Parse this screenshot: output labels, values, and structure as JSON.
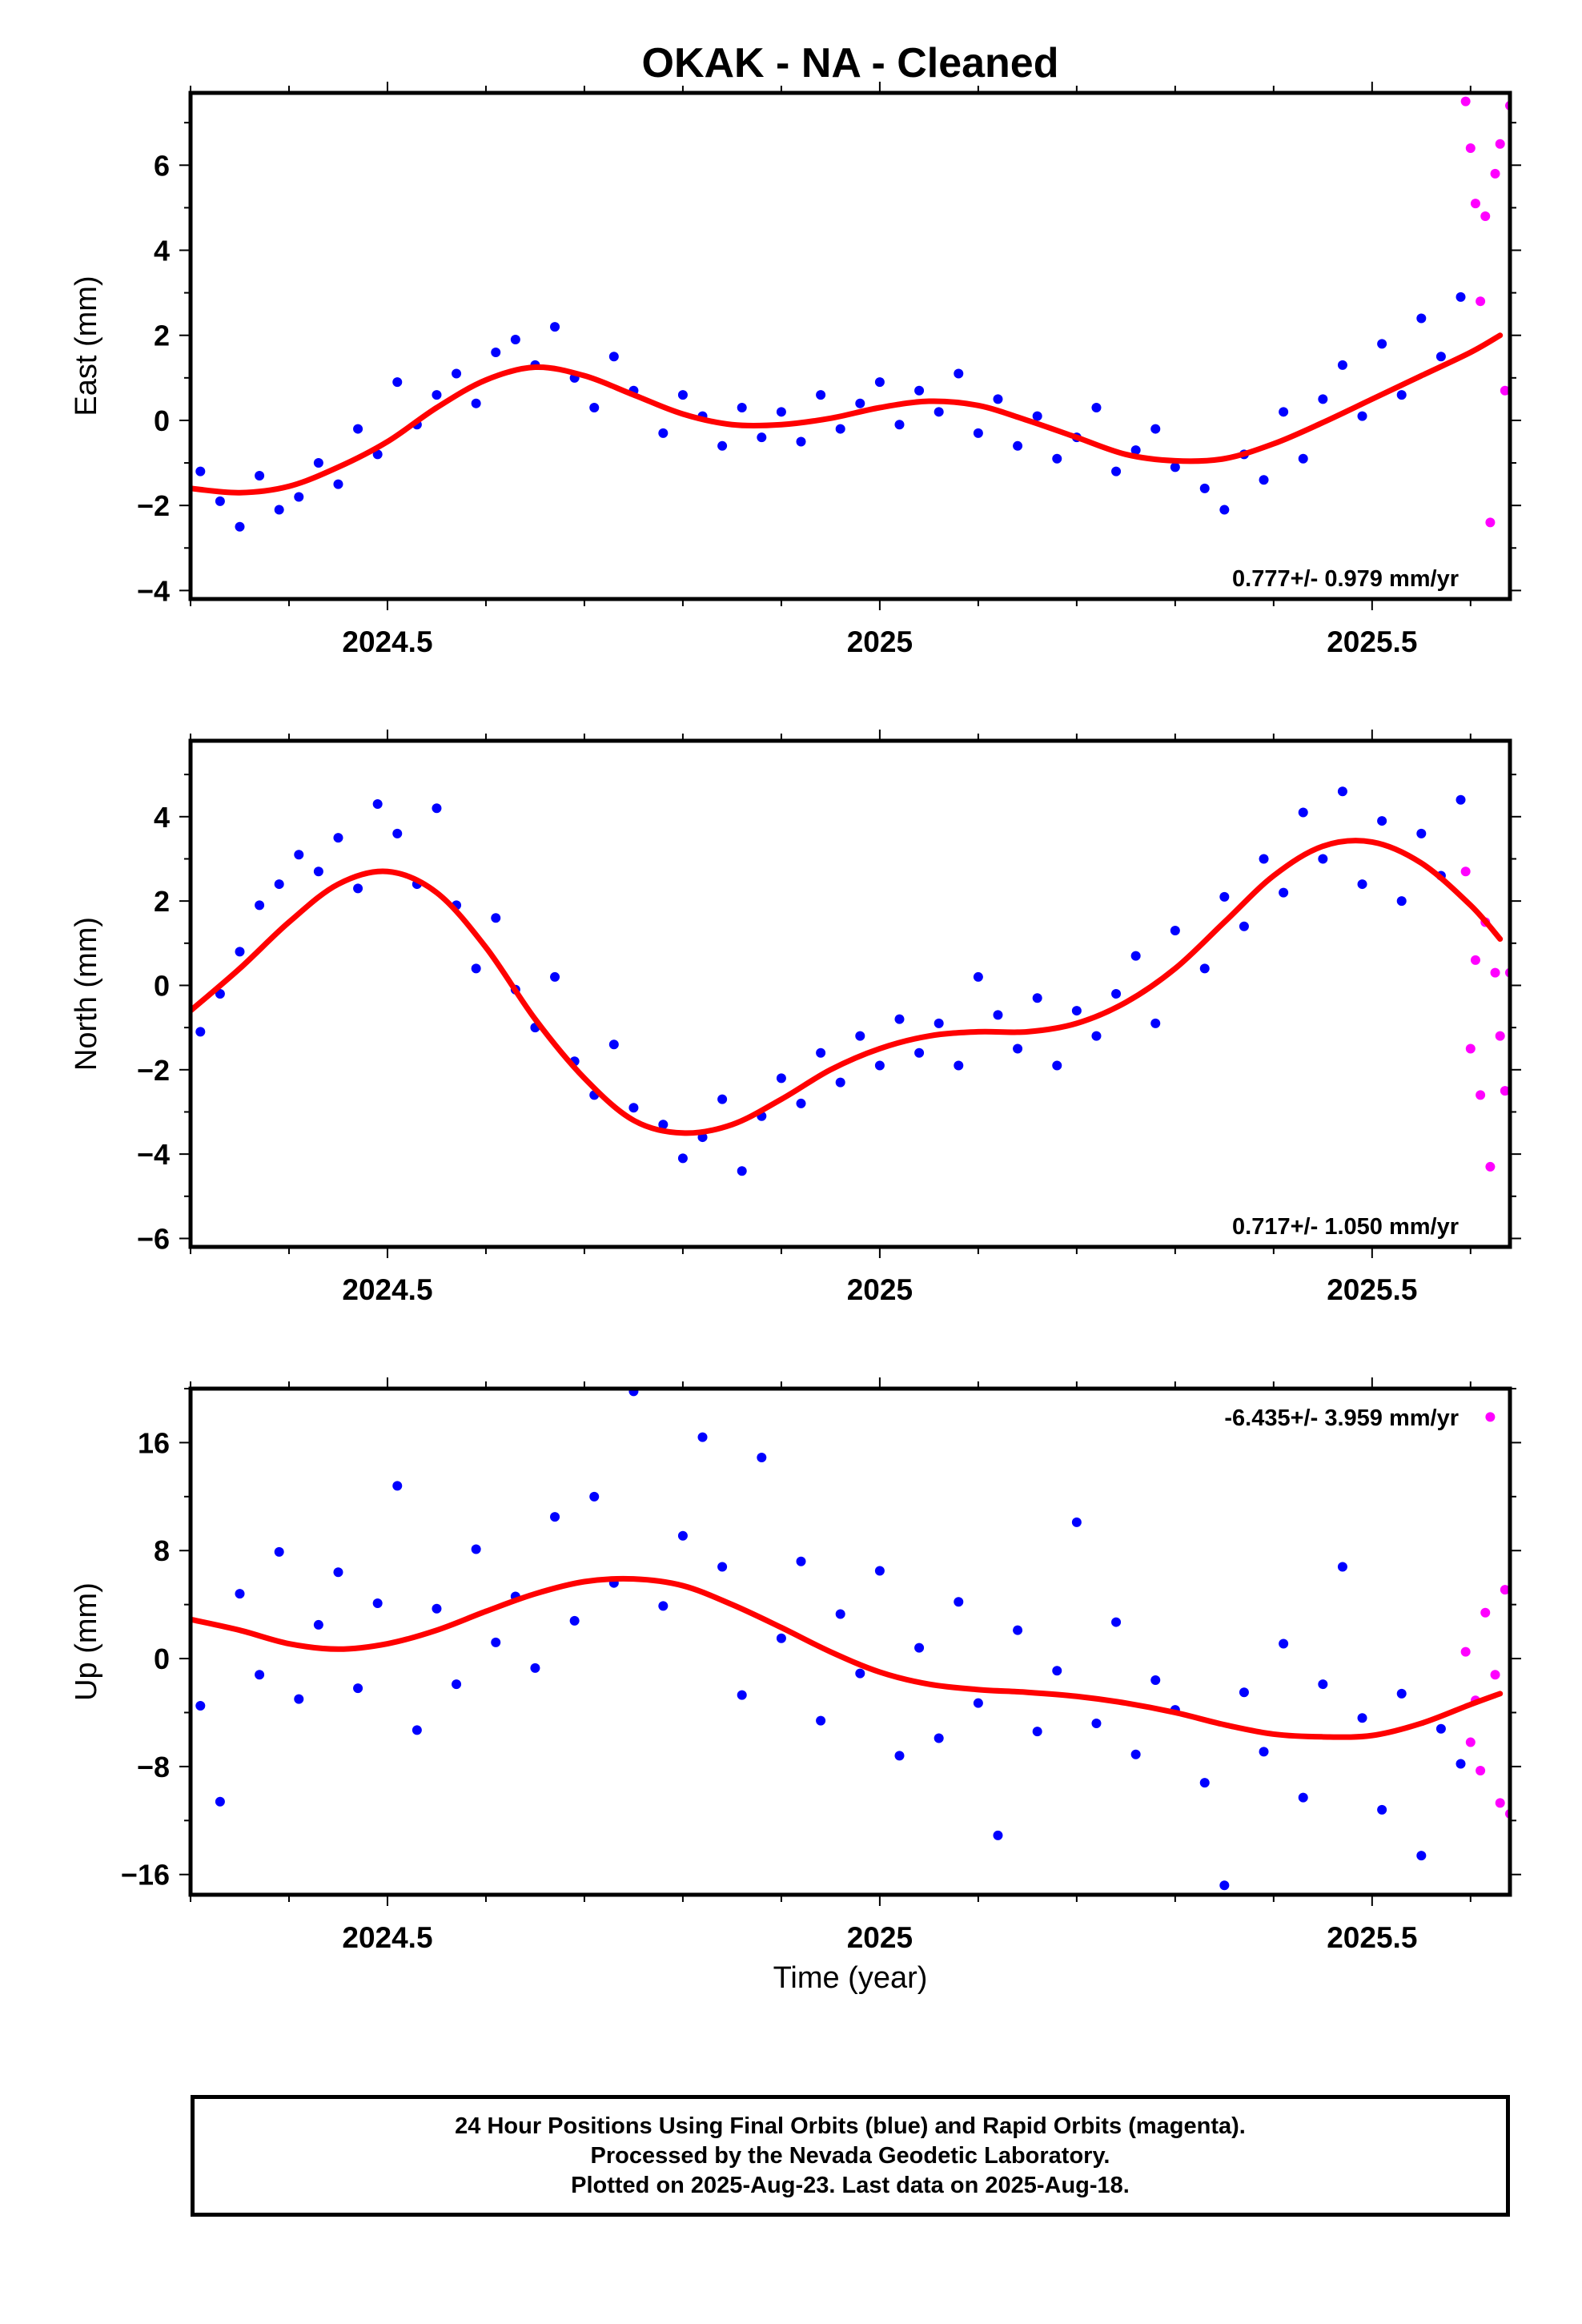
{
  "title": "OKAK  - NA - Cleaned",
  "x_axis_label": "Time (year)",
  "colors": {
    "final_orbits": "#0000ff",
    "rapid_orbits": "#ff00ff",
    "model_fit": "#ff0000",
    "frame": "#000000"
  },
  "footer": {
    "line1": "24 Hour Positions Using Final Orbits (blue) and Rapid Orbits (magenta).",
    "line2": "Processed by the Nevada Geodetic Laboratory.",
    "line3": "Plotted on 2025-Aug-23. Last data on 2025-Aug-18."
  },
  "chart_data": [
    {
      "type": "scatter",
      "ylabel": "East (mm)",
      "xlabel": "",
      "xlim": [
        2024.3,
        2025.64
      ],
      "ylim": [
        -4.2,
        7.7
      ],
      "x_ticks": [
        2024.5,
        2025.0,
        2025.5
      ],
      "y_ticks": [
        -4,
        -2,
        0,
        2,
        4,
        6
      ],
      "rate_label": "0.777+/- 0.979 mm/yr",
      "rate_position": "bottom-right",
      "model": {
        "name": "model fit",
        "x": [
          2024.3,
          2024.35,
          2024.4,
          2024.45,
          2024.5,
          2024.55,
          2024.6,
          2024.65,
          2024.7,
          2024.75,
          2024.8,
          2024.85,
          2024.9,
          2024.95,
          2025.0,
          2025.05,
          2025.1,
          2025.15,
          2025.2,
          2025.25,
          2025.3,
          2025.35,
          2025.4,
          2025.45,
          2025.5,
          2025.55,
          2025.6,
          2025.63
        ],
        "y": [
          -1.6,
          -1.7,
          -1.55,
          -1.1,
          -0.5,
          0.3,
          0.95,
          1.25,
          1.05,
          0.6,
          0.15,
          -0.1,
          -0.1,
          0.05,
          0.3,
          0.45,
          0.35,
          0.0,
          -0.4,
          -0.8,
          -0.95,
          -0.9,
          -0.55,
          -0.05,
          0.5,
          1.05,
          1.6,
          2.0
        ]
      },
      "final_orbits": {
        "x": [
          2024.31,
          2024.33,
          2024.35,
          2024.37,
          2024.39,
          2024.41,
          2024.43,
          2024.45,
          2024.47,
          2024.49,
          2024.51,
          2024.53,
          2024.55,
          2024.57,
          2024.59,
          2024.61,
          2024.63,
          2024.65,
          2024.67,
          2024.69,
          2024.71,
          2024.73,
          2024.75,
          2024.78,
          2024.8,
          2024.82,
          2024.84,
          2024.86,
          2024.88,
          2024.9,
          2024.92,
          2024.94,
          2024.96,
          2024.98,
          2025.0,
          2025.02,
          2025.04,
          2025.06,
          2025.08,
          2025.1,
          2025.12,
          2025.14,
          2025.16,
          2025.18,
          2025.2,
          2025.22,
          2025.24,
          2025.26,
          2025.28,
          2025.3,
          2025.33,
          2025.35,
          2025.37,
          2025.39,
          2025.41,
          2025.43,
          2025.45,
          2025.47,
          2025.49,
          2025.51,
          2025.53,
          2025.55,
          2025.57,
          2025.59
        ],
        "y": [
          -1.2,
          -1.9,
          -2.5,
          -1.3,
          -2.1,
          -1.8,
          -1.0,
          -1.5,
          -0.2,
          -0.8,
          0.9,
          -0.1,
          0.6,
          1.1,
          0.4,
          1.6,
          1.9,
          1.3,
          2.2,
          1.0,
          0.3,
          1.5,
          0.7,
          -0.3,
          0.6,
          0.1,
          -0.6,
          0.3,
          -0.4,
          0.2,
          -0.5,
          0.6,
          -0.2,
          0.4,
          0.9,
          -0.1,
          0.7,
          0.2,
          1.1,
          -0.3,
          0.5,
          -0.6,
          0.1,
          -0.9,
          -0.4,
          0.3,
          -1.2,
          -0.7,
          -0.2,
          -1.1,
          -1.6,
          -2.1,
          -0.8,
          -1.4,
          0.2,
          -0.9,
          0.5,
          1.3,
          0.1,
          1.8,
          0.6,
          2.4,
          1.5,
          2.9
        ]
      },
      "rapid_orbits": {
        "x": [
          2025.595,
          2025.6,
          2025.605,
          2025.61,
          2025.615,
          2025.62,
          2025.625,
          2025.63,
          2025.635,
          2025.64
        ],
        "y": [
          7.5,
          6.4,
          5.1,
          2.8,
          4.8,
          -2.4,
          5.8,
          6.5,
          0.7,
          7.4
        ]
      }
    },
    {
      "type": "scatter",
      "ylabel": "North (mm)",
      "xlabel": "",
      "xlim": [
        2024.3,
        2025.64
      ],
      "ylim": [
        -6.2,
        5.8
      ],
      "x_ticks": [
        2024.5,
        2025.0,
        2025.5
      ],
      "y_ticks": [
        -6,
        -4,
        -2,
        0,
        2,
        4
      ],
      "rate_label": "0.717+/- 1.050 mm/yr",
      "rate_position": "bottom-right",
      "model": {
        "name": "model fit",
        "x": [
          2024.3,
          2024.35,
          2024.4,
          2024.45,
          2024.5,
          2024.55,
          2024.6,
          2024.65,
          2024.7,
          2024.75,
          2024.8,
          2024.85,
          2024.9,
          2024.95,
          2025.0,
          2025.05,
          2025.1,
          2025.15,
          2025.2,
          2025.25,
          2025.3,
          2025.35,
          2025.4,
          2025.45,
          2025.5,
          2025.55,
          2025.6,
          2025.63
        ],
        "y": [
          -0.6,
          0.4,
          1.5,
          2.4,
          2.7,
          2.2,
          0.9,
          -0.8,
          -2.2,
          -3.2,
          -3.5,
          -3.3,
          -2.7,
          -2.0,
          -1.5,
          -1.2,
          -1.1,
          -1.1,
          -0.9,
          -0.4,
          0.4,
          1.5,
          2.6,
          3.3,
          3.4,
          2.9,
          1.9,
          1.1
        ]
      },
      "final_orbits": {
        "x": [
          2024.31,
          2024.33,
          2024.35,
          2024.37,
          2024.39,
          2024.41,
          2024.43,
          2024.45,
          2024.47,
          2024.49,
          2024.51,
          2024.53,
          2024.55,
          2024.57,
          2024.59,
          2024.61,
          2024.63,
          2024.65,
          2024.67,
          2024.69,
          2024.71,
          2024.73,
          2024.75,
          2024.78,
          2024.8,
          2024.82,
          2024.84,
          2024.86,
          2024.88,
          2024.9,
          2024.92,
          2024.94,
          2024.96,
          2024.98,
          2025.0,
          2025.02,
          2025.04,
          2025.06,
          2025.08,
          2025.1,
          2025.12,
          2025.14,
          2025.16,
          2025.18,
          2025.2,
          2025.22,
          2025.24,
          2025.26,
          2025.28,
          2025.3,
          2025.33,
          2025.35,
          2025.37,
          2025.39,
          2025.41,
          2025.43,
          2025.45,
          2025.47,
          2025.49,
          2025.51,
          2025.53,
          2025.55,
          2025.57,
          2025.59
        ],
        "y": [
          -1.1,
          -0.2,
          0.8,
          1.9,
          2.4,
          3.1,
          2.7,
          3.5,
          2.3,
          4.3,
          3.6,
          2.4,
          4.2,
          1.9,
          0.4,
          1.6,
          -0.1,
          -1.0,
          0.2,
          -1.8,
          -2.6,
          -1.4,
          -2.9,
          -3.3,
          -4.1,
          -3.6,
          -2.7,
          -4.4,
          -3.1,
          -2.2,
          -2.8,
          -1.6,
          -2.3,
          -1.2,
          -1.9,
          -0.8,
          -1.6,
          -0.9,
          -1.9,
          0.2,
          -0.7,
          -1.5,
          -0.3,
          -1.9,
          -0.6,
          -1.2,
          -0.2,
          0.7,
          -0.9,
          1.3,
          0.4,
          2.1,
          1.4,
          3.0,
          2.2,
          4.1,
          3.0,
          4.6,
          2.4,
          3.9,
          2.0,
          3.6,
          2.6,
          4.4
        ]
      },
      "rapid_orbits": {
        "x": [
          2025.595,
          2025.6,
          2025.605,
          2025.61,
          2025.615,
          2025.62,
          2025.625,
          2025.63,
          2025.635,
          2025.64
        ],
        "y": [
          2.7,
          -1.5,
          0.6,
          -2.6,
          1.5,
          -4.3,
          0.3,
          -1.2,
          -2.5,
          0.3
        ]
      }
    },
    {
      "type": "scatter",
      "ylabel": "Up (mm)",
      "xlabel": "Time (year)",
      "xlim": [
        2024.3,
        2025.64
      ],
      "ylim": [
        -17.5,
        20.0
      ],
      "x_ticks": [
        2024.5,
        2025.0,
        2025.5
      ],
      "y_ticks": [
        -16,
        -8,
        0,
        8,
        16
      ],
      "rate_label": "-6.435+/- 3.959 mm/yr",
      "rate_position": "top-right",
      "model": {
        "name": "model fit",
        "x": [
          2024.3,
          2024.35,
          2024.4,
          2024.45,
          2024.5,
          2024.55,
          2024.6,
          2024.65,
          2024.7,
          2024.75,
          2024.8,
          2024.85,
          2024.9,
          2024.95,
          2025.0,
          2025.05,
          2025.1,
          2025.15,
          2025.2,
          2025.25,
          2025.3,
          2025.35,
          2025.4,
          2025.45,
          2025.5,
          2025.55,
          2025.6,
          2025.63
        ],
        "y": [
          2.9,
          2.1,
          1.1,
          0.7,
          1.1,
          2.1,
          3.5,
          4.8,
          5.7,
          5.9,
          5.4,
          4.0,
          2.3,
          0.5,
          -1.0,
          -1.9,
          -2.3,
          -2.5,
          -2.8,
          -3.3,
          -4.0,
          -4.9,
          -5.6,
          -5.8,
          -5.7,
          -4.8,
          -3.4,
          -2.6
        ]
      },
      "final_orbits": {
        "x": [
          2024.31,
          2024.33,
          2024.35,
          2024.37,
          2024.39,
          2024.41,
          2024.43,
          2024.45,
          2024.47,
          2024.49,
          2024.51,
          2024.53,
          2024.55,
          2024.57,
          2024.59,
          2024.61,
          2024.63,
          2024.65,
          2024.67,
          2024.69,
          2024.71,
          2024.73,
          2024.75,
          2024.78,
          2024.8,
          2024.82,
          2024.84,
          2024.86,
          2024.88,
          2024.9,
          2024.92,
          2024.94,
          2024.96,
          2024.98,
          2025.0,
          2025.02,
          2025.04,
          2025.06,
          2025.08,
          2025.1,
          2025.12,
          2025.14,
          2025.16,
          2025.18,
          2025.2,
          2025.22,
          2025.24,
          2025.26,
          2025.28,
          2025.3,
          2025.33,
          2025.35,
          2025.37,
          2025.39,
          2025.41,
          2025.43,
          2025.45,
          2025.47,
          2025.49,
          2025.51,
          2025.53,
          2025.55,
          2025.57,
          2025.59
        ],
        "y": [
          -3.5,
          -10.6,
          4.8,
          -1.2,
          7.9,
          -3.0,
          2.5,
          6.4,
          -2.2,
          4.1,
          12.8,
          -5.3,
          3.7,
          -1.9,
          8.1,
          1.2,
          4.6,
          -0.7,
          10.5,
          2.8,
          12.0,
          5.6,
          19.8,
          3.9,
          9.1,
          16.4,
          6.8,
          -2.7,
          14.9,
          1.5,
          7.2,
          -4.6,
          3.3,
          -1.1,
          6.5,
          -7.2,
          0.8,
          -5.9,
          4.2,
          -3.3,
          -13.1,
          2.1,
          -5.4,
          -0.9,
          10.1,
          -4.8,
          2.7,
          -7.1,
          -1.6,
          -3.8,
          -9.2,
          -16.8,
          -2.5,
          -6.9,
          1.1,
          -10.3,
          -1.9,
          6.8,
          -4.4,
          -11.2,
          -2.6,
          -14.6,
          -5.2,
          -7.8
        ]
      },
      "rapid_orbits": {
        "x": [
          2025.595,
          2025.6,
          2025.605,
          2025.61,
          2025.615,
          2025.62,
          2025.625,
          2025.63,
          2025.635,
          2025.64
        ],
        "y": [
          0.5,
          -6.2,
          -3.1,
          -8.3,
          3.4,
          17.9,
          -1.2,
          -10.7,
          5.1,
          -11.5
        ]
      }
    }
  ]
}
